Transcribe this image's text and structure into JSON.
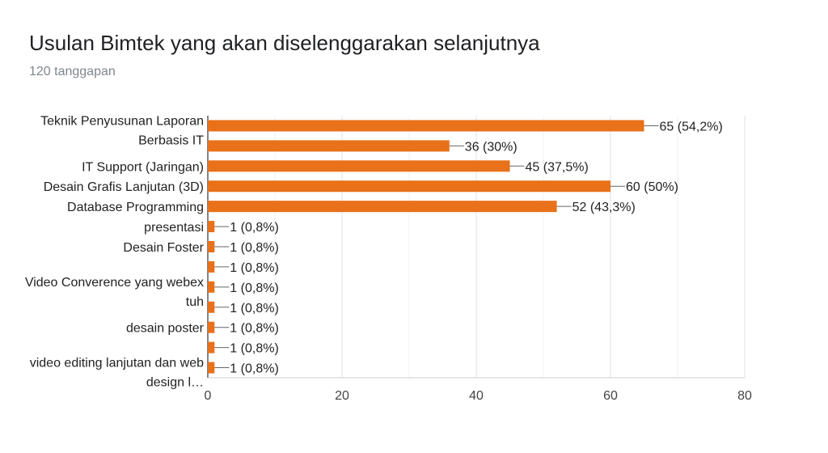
{
  "header": {
    "title": "Usulan Bimtek yang akan diselenggarakan selanjutnya",
    "subtitle": "120 tanggapan"
  },
  "chart_data": {
    "type": "bar",
    "orientation": "horizontal",
    "title": "Usulan Bimtek yang akan diselenggarakan selanjutnya",
    "xlabel": "",
    "ylabel": "",
    "xlim": [
      0,
      80
    ],
    "x_ticks": [
      0,
      20,
      40,
      60,
      80
    ],
    "bar_color": "#e8711a",
    "grid": true,
    "categories": [
      "Teknik Penyusunan Laporan Berbasis IT",
      "",
      "IT Support (Jaringan)",
      "Desain Grafis Lanjutan (3D)",
      "Database Programming",
      "presentasi",
      "Desain Foster",
      "",
      "Video Converence yang webex tuh",
      "",
      "desain poster",
      "",
      "video editing lanjutan dan web design l…"
    ],
    "category_text_lines": [
      [
        "Teknik Penyusunan Laporan",
        "Berbasis IT"
      ],
      [],
      [
        "IT Support (Jaringan)"
      ],
      [
        "Desain Grafis Lanjutan (3D)"
      ],
      [
        "Database Programming"
      ],
      [
        "presentasi"
      ],
      [
        "Desain Foster"
      ],
      [],
      [
        "Video Converence yang webex",
        "tuh"
      ],
      [],
      [
        "desain poster"
      ],
      [],
      [
        "video editing lanjutan dan web",
        "design l…"
      ]
    ],
    "values": [
      65,
      36,
      45,
      60,
      52,
      1,
      1,
      1,
      1,
      1,
      1,
      1,
      1
    ],
    "value_labels": [
      "65 (54,2%)",
      "36 (30%)",
      "45 (37,5%)",
      "60 (50%)",
      "52 (43,3%)",
      "1 (0,8%)",
      "1 (0,8%)",
      "1 (0,8%)",
      "1 (0,8%)",
      "1 (0,8%)",
      "1 (0,8%)",
      "1 (0,8%)",
      "1 (0,8%)"
    ]
  }
}
